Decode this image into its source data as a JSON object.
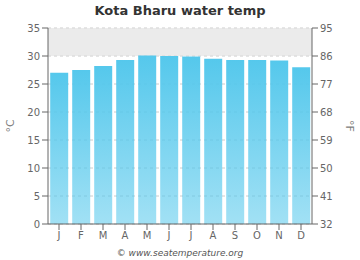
{
  "chart_data": {
    "type": "bar",
    "title": "Kota Bharu water temp",
    "categories": [
      "J",
      "F",
      "M",
      "A",
      "M",
      "J",
      "J",
      "A",
      "S",
      "O",
      "N",
      "D"
    ],
    "values": [
      27.0,
      27.5,
      28.2,
      29.3,
      30.1,
      30.0,
      29.9,
      29.5,
      29.3,
      29.3,
      29.2,
      28.0
    ],
    "color": "#55c8ec",
    "ylim": [
      0,
      35
    ],
    "yticks": [
      0,
      5,
      10,
      15,
      20,
      25,
      30,
      35
    ],
    "y_label": "°C",
    "y2lim": [
      32,
      95
    ],
    "y2ticks": [
      32,
      41,
      50,
      59,
      68,
      77,
      86,
      95
    ],
    "y2_label": "°F",
    "band": [
      30,
      35
    ],
    "grid": true,
    "annotations": [
      "© www.seatemperature.org"
    ]
  }
}
